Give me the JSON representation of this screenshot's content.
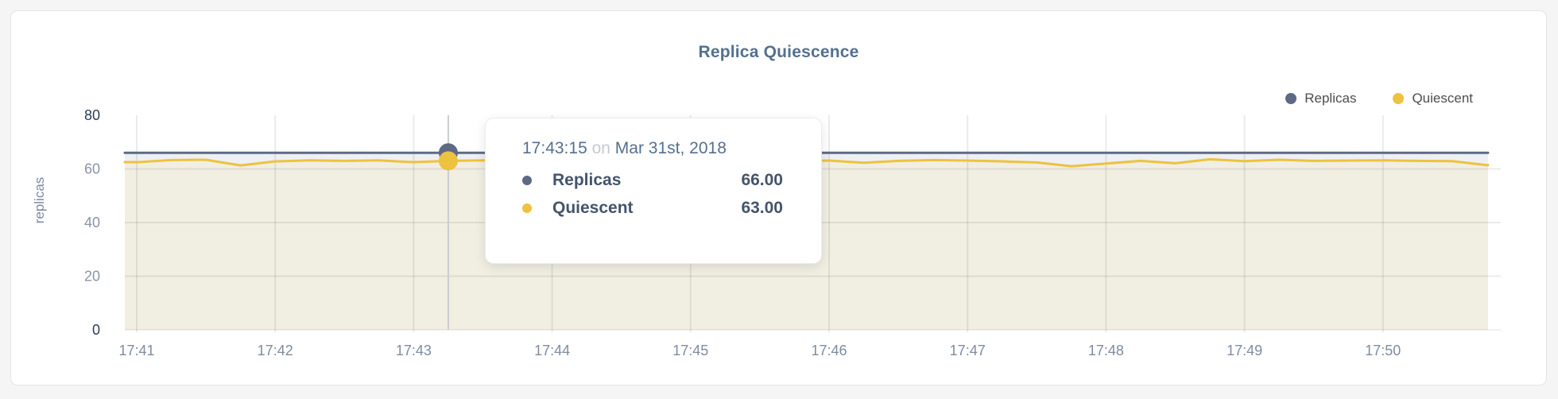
{
  "colors": {
    "accent_text": "#54708e",
    "page_background": "#f5f5f6",
    "replicas": "#5d6a85",
    "quiescent": "#edc23e",
    "replicas_fill": "#eef0f3",
    "quiescent_fill": "#f1eee2",
    "axis_major_tick": "#2e3d56",
    "axis_minor_tick": "#8a94a8"
  },
  "chart_data": {
    "type": "area",
    "title": "Replica Quiescence",
    "ylabel": "replicas",
    "ylim": [
      0,
      80
    ],
    "y_ticks": [
      0,
      20,
      40,
      60,
      80
    ],
    "y_major_ticks": [
      0,
      80
    ],
    "x_ticks": [
      "17:41",
      "17:42",
      "17:43",
      "17:44",
      "17:45",
      "17:46",
      "17:47",
      "17:48",
      "17:49",
      "17:50"
    ],
    "start_time": "17:41:00",
    "interval_seconds": 15,
    "grid": true,
    "legend_position": "top-right",
    "series": [
      {
        "name": "Replicas",
        "color": "#5d6a85",
        "fill": "#eef0f3",
        "values": [
          66,
          66,
          66,
          66,
          66,
          66,
          66,
          66,
          66,
          66,
          66,
          66,
          66,
          66,
          66,
          66,
          66,
          66,
          66,
          66,
          66,
          66,
          66,
          66,
          66,
          66,
          66,
          66,
          66,
          66,
          66,
          66,
          66,
          66,
          66,
          66,
          66,
          66,
          66,
          66
        ]
      },
      {
        "name": "Quiescent",
        "color": "#edc23e",
        "fill": "#f1eee2",
        "values": [
          62.5,
          63.3,
          63.4,
          61.3,
          62.8,
          63.2,
          63,
          63.2,
          62.5,
          63,
          63.2,
          63.1,
          62.6,
          63,
          63.2,
          63,
          62.8,
          63.1,
          63,
          62.9,
          63.1,
          62.3,
          63,
          63.3,
          63.1,
          62.8,
          62.4,
          61,
          62,
          63,
          62.1,
          63.6,
          62.9,
          63.4,
          63,
          63.1,
          63.2,
          63,
          62.9,
          61.4
        ]
      }
    ],
    "highlight": {
      "index": 9,
      "time": "17:43:15"
    }
  },
  "tooltip": {
    "time": "17:43:15",
    "conjunction": "on",
    "date": "Mar 31st, 2018",
    "rows": [
      {
        "label": "Replicas",
        "value": "66.00",
        "color": "#5d6a85"
      },
      {
        "label": "Quiescent",
        "value": "63.00",
        "color": "#edc23e"
      }
    ]
  }
}
